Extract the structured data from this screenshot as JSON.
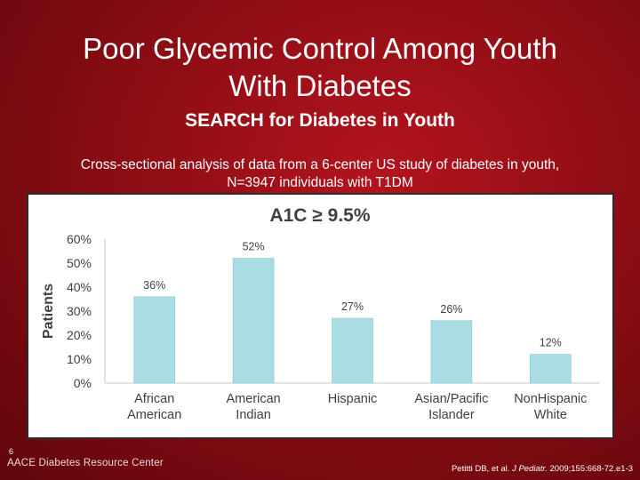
{
  "slide": {
    "title_line1": "Poor Glycemic Control Among Youth",
    "title_line2": "With Diabetes",
    "subtitle": "SEARCH for Diabetes in Youth",
    "description_line1": "Cross-sectional analysis of data from a 6-center US study of diabetes in youth,",
    "description_line2": "N=3947 individuals with T1DM",
    "slide_number": "6",
    "footer_brand": "AACE Diabetes Resource Center",
    "citation_authors": "Petitti DB, et al. ",
    "citation_journal": "J Pediatr.",
    "citation_detail": " 2009;155:668-72.e1-3"
  },
  "colors": {
    "bar_fill": "#a9dde3",
    "bar_stroke": "#86c6cd",
    "axis_line": "#c8c8c8",
    "text": "#404040"
  },
  "chart_data": {
    "type": "bar",
    "title": "A1C ≥ 9.5%",
    "xlabel": "",
    "ylabel": "Patients",
    "categories": [
      [
        "African",
        "American"
      ],
      [
        "American",
        "Indian"
      ],
      [
        "Hispanic"
      ],
      [
        "Asian/Pacific",
        "Islander"
      ],
      [
        "NonHispanic",
        "White"
      ]
    ],
    "values": [
      36,
      52,
      27,
      26,
      12
    ],
    "data_labels": [
      "36%",
      "52%",
      "27%",
      "26%",
      "12%"
    ],
    "yticks": [
      0,
      10,
      20,
      30,
      40,
      50,
      60
    ],
    "ytick_labels": [
      "0%",
      "10%",
      "20%",
      "30%",
      "40%",
      "50%",
      "60%"
    ],
    "ylim": [
      0,
      60
    ],
    "grid": false,
    "legend": "none"
  }
}
